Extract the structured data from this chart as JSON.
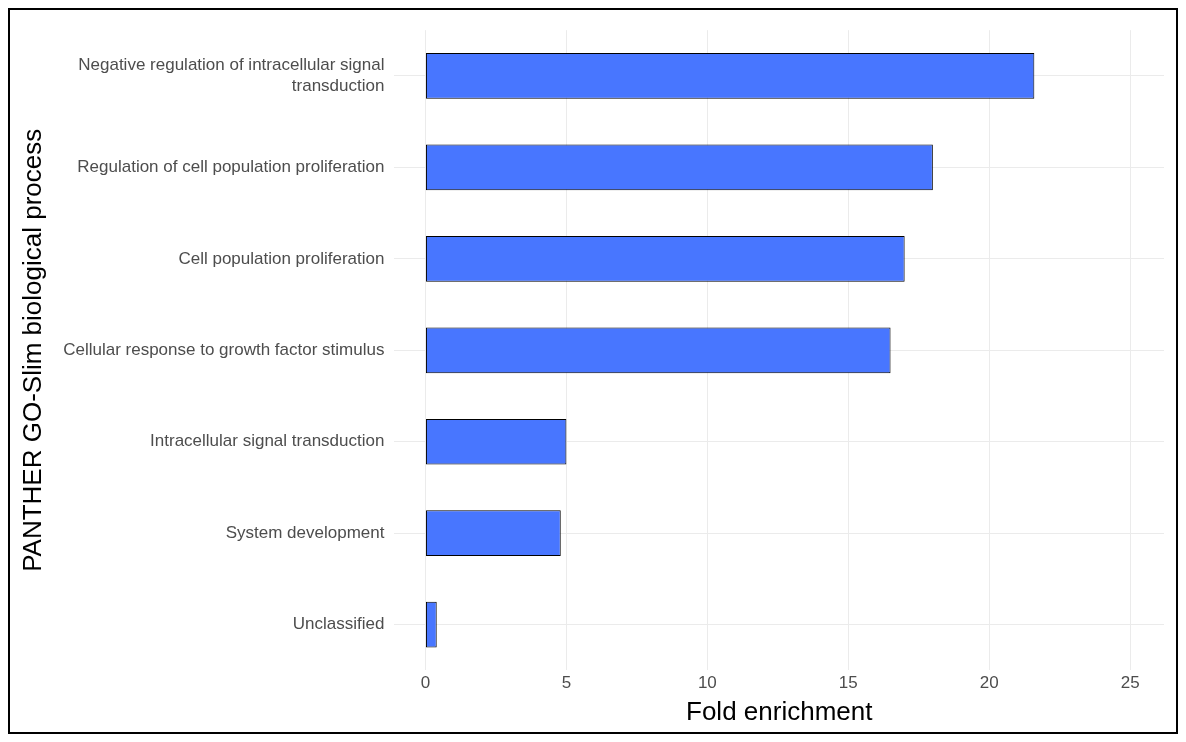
{
  "chart_data": {
    "type": "bar",
    "orientation": "horizontal",
    "xlabel": "Fold enrichment",
    "ylabel": "PANTHER GO-Slim biological process",
    "categories": [
      "Negative regulation of intracellular signal transduction",
      "Regulation of cell population proliferation",
      "Cell population proliferation",
      "Cellular response to growth factor stimulus",
      "Intracellular signal transduction",
      "System development",
      "Unclassified"
    ],
    "values": [
      21.6,
      18.0,
      17.0,
      16.5,
      5.0,
      4.8,
      0.4
    ],
    "color": "#4876ff",
    "xlim": [
      -1.1,
      26.2
    ],
    "xticks": [
      0,
      5,
      10,
      15,
      20,
      25
    ],
    "grid": true
  }
}
